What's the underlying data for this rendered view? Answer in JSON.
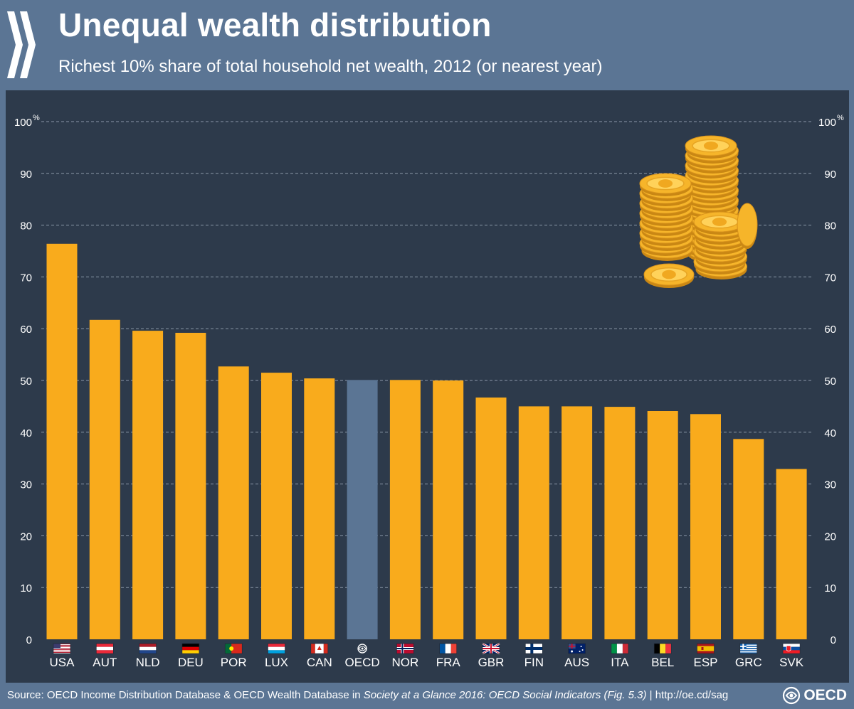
{
  "header": {
    "title": "Unequal wealth distribution",
    "subtitle": "Richest 10% share of total household net wealth, 2012 (or nearest year)"
  },
  "footer": {
    "source_prefix": "Source: OECD Income Distribution Database & OECD Wealth Database in ",
    "source_title": "Society at a Glance 2016: OECD Social Indicators (Fig. 5.3)",
    "source_suffix": " | http://oe.cd/sag",
    "brand": "OECD"
  },
  "colors": {
    "bar": "#f9ab1c",
    "highlight_bar": "#5b7594",
    "panel_bg": "#2d3a4b",
    "page_bg": "#5b7594"
  },
  "icons": [
    "oecd-chevron-logo",
    "coin-stack-illustration",
    "country-flag-icons",
    "oecd-globe-icon"
  ],
  "chart_data": {
    "type": "bar",
    "categories": [
      "USA",
      "AUT",
      "NLD",
      "DEU",
      "POR",
      "LUX",
      "CAN",
      "OECD",
      "NOR",
      "FRA",
      "GBR",
      "FIN",
      "AUS",
      "ITA",
      "BEL",
      "ESP",
      "GRC",
      "SVK"
    ],
    "values": [
      76.4,
      61.7,
      59.6,
      59.2,
      52.7,
      51.5,
      50.4,
      50.1,
      50.1,
      50.0,
      46.7,
      45.0,
      45.0,
      44.9,
      44.1,
      43.5,
      38.7,
      32.9
    ],
    "highlight": "OECD",
    "ylim": [
      0,
      100
    ],
    "yticks": [
      0,
      10,
      20,
      30,
      40,
      50,
      60,
      70,
      80,
      90,
      100
    ],
    "yunit": "%",
    "grid": true,
    "axes": "both-sides",
    "title": "Unequal wealth distribution",
    "subtitle": "Richest 10% share of total household net wealth, 2012 (or nearest year)"
  }
}
